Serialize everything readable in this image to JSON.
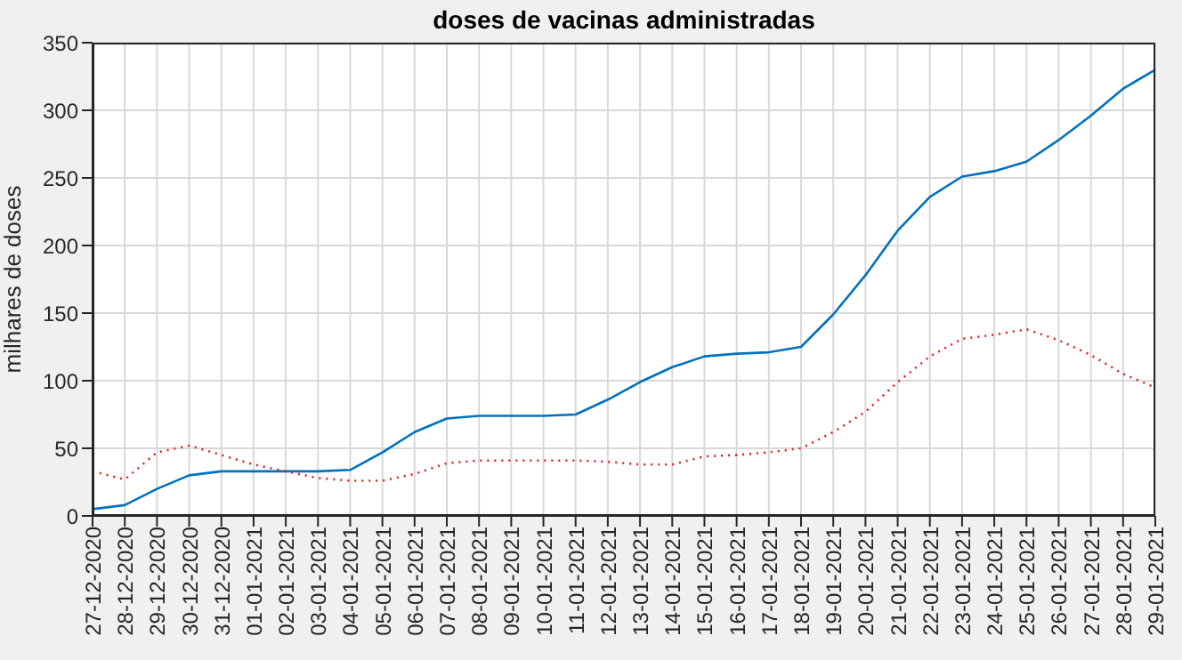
{
  "chart_data": {
    "type": "line",
    "title": "doses de vacinas administradas",
    "ylabel": "milhares de doses",
    "categories": [
      "27-12-2020",
      "28-12-2020",
      "29-12-2020",
      "30-12-2020",
      "31-12-2020",
      "01-01-2021",
      "02-01-2021",
      "03-01-2021",
      "04-01-2021",
      "05-01-2021",
      "06-01-2021",
      "07-01-2021",
      "08-01-2021",
      "09-01-2021",
      "10-01-2021",
      "11-01-2021",
      "12-01-2021",
      "13-01-2021",
      "14-01-2021",
      "15-01-2021",
      "16-01-2021",
      "17-01-2021",
      "18-01-2021",
      "19-01-2021",
      "20-01-2021",
      "21-01-2021",
      "22-01-2021",
      "23-01-2021",
      "24-01-2021",
      "25-01-2021",
      "26-01-2021",
      "27-01-2021",
      "28-01-2021",
      "29-01-2021"
    ],
    "series": [
      {
        "color": "#0072bd",
        "line_style": "solid",
        "values": [
          5,
          8,
          20,
          30,
          33,
          33,
          33,
          33,
          34,
          47,
          62,
          72,
          74,
          74,
          74,
          75,
          86,
          99,
          110,
          118,
          120,
          121,
          125,
          149,
          178,
          211,
          236,
          251,
          255,
          262,
          278,
          296,
          316,
          330
        ]
      },
      {
        "color": "#e02020",
        "line_style": "dotted",
        "values": [
          33,
          27,
          47,
          52,
          45,
          38,
          33,
          28,
          26,
          26,
          31,
          39,
          41,
          41,
          41,
          41,
          40,
          38,
          38,
          44,
          45,
          47,
          50,
          62,
          77,
          99,
          118,
          131,
          134,
          138,
          130,
          119,
          105,
          95
        ]
      }
    ],
    "ylim": [
      0,
      350
    ],
    "yticks": [
      0,
      50,
      100,
      150,
      200,
      250,
      300,
      350
    ],
    "grid": true,
    "marker": "none"
  }
}
